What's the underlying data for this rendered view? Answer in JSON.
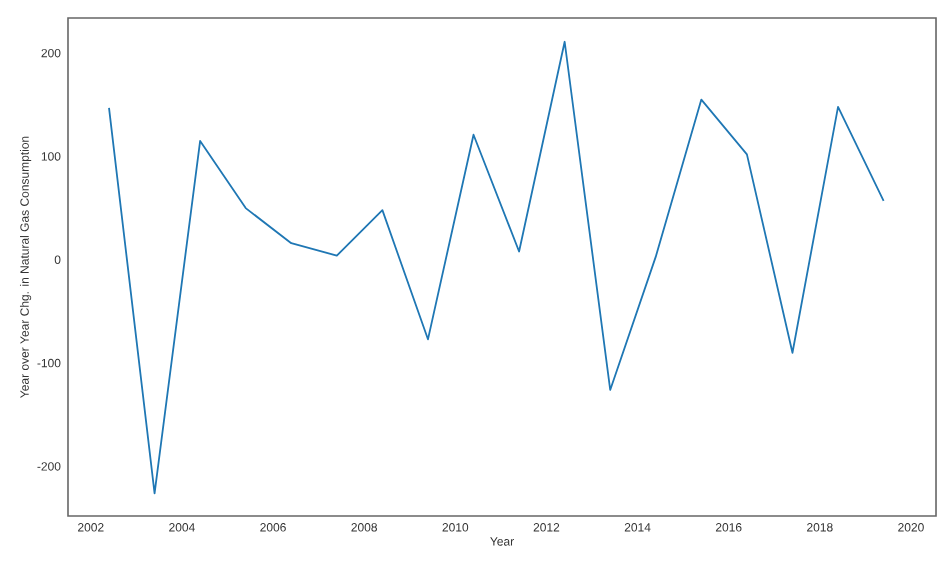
{
  "chart_data": {
    "type": "line",
    "xlabel": "Year",
    "ylabel": "Year over Year Chg. in Natural Gas Consumption",
    "x": [
      2002.4,
      2003.4,
      2004.4,
      2005.4,
      2006.4,
      2007.4,
      2008.4,
      2009.4,
      2010.4,
      2011.4,
      2012.4,
      2013.4,
      2014.4,
      2015.4,
      2016.4,
      2017.4,
      2018.4,
      2019.4
    ],
    "series": [
      {
        "color": "#1f77b4",
        "values": [
          147,
          -226,
          115,
          50,
          16,
          4,
          48,
          -77,
          121,
          8,
          211,
          -126,
          3,
          155,
          102,
          -90,
          148,
          57
        ]
      }
    ],
    "xlim": [
      2001.5,
      2020.55
    ],
    "ylim": [
      -248,
      234
    ],
    "xticks": [
      2002,
      2004,
      2006,
      2008,
      2010,
      2012,
      2014,
      2016,
      2018,
      2020
    ],
    "yticks": [
      -200,
      -100,
      0,
      100,
      200
    ],
    "grid": false,
    "marker": "none",
    "line_style": "solid"
  }
}
